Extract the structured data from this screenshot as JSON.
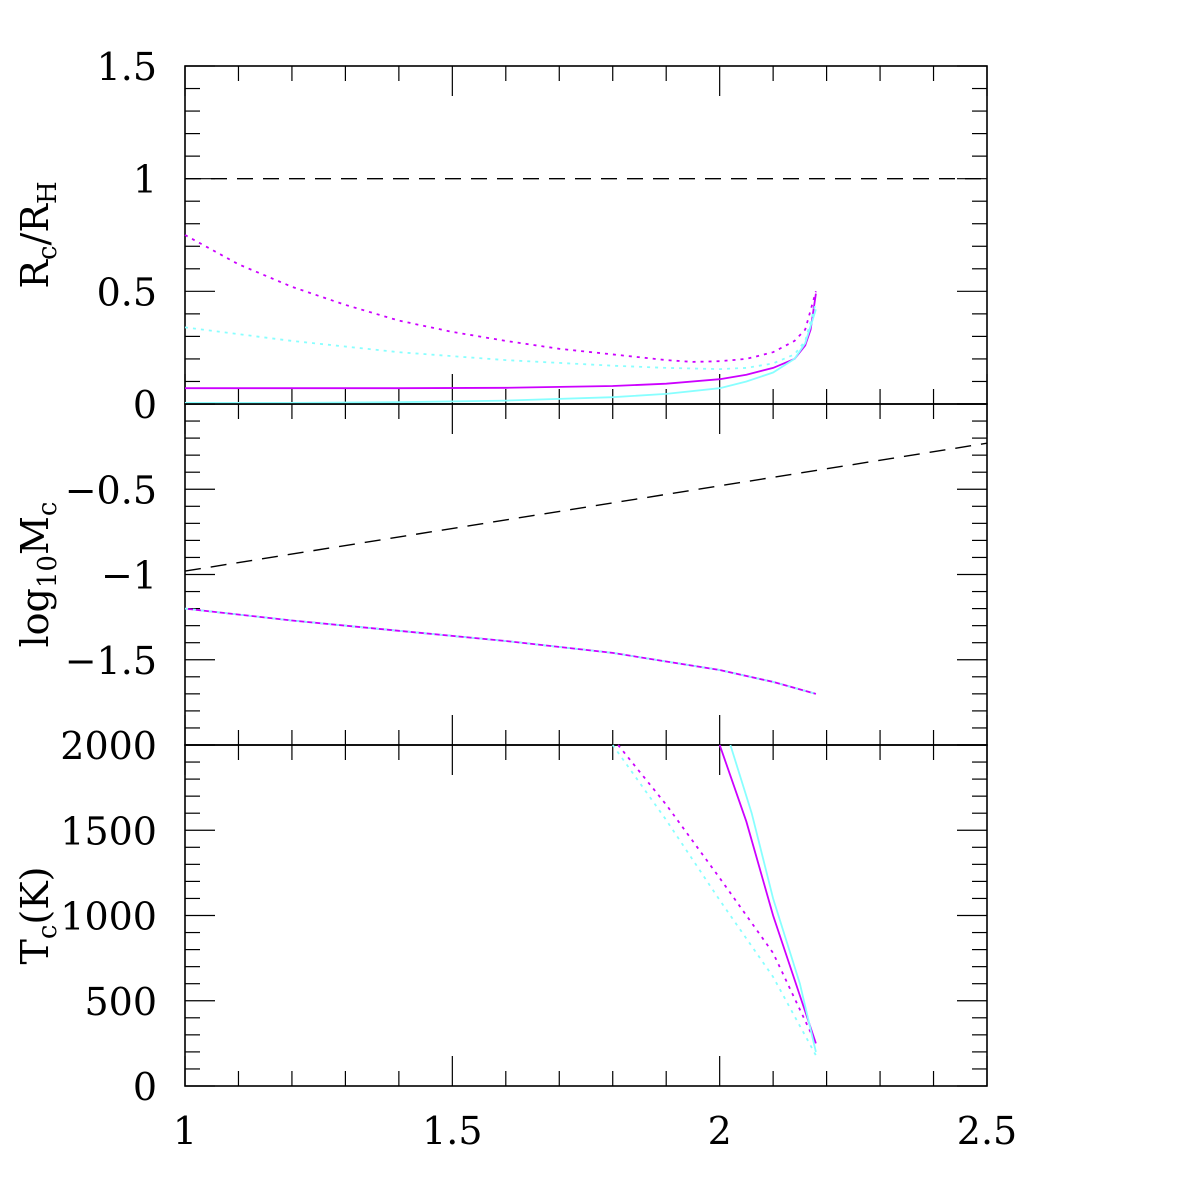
{
  "chart_data": [
    {
      "type": "line",
      "panel": "top",
      "ylabel_parts": [
        "R",
        "c",
        "/R",
        "H"
      ],
      "xlim": [
        1,
        2.5
      ],
      "ylim": [
        0,
        1.5
      ],
      "yticks": [
        0,
        0.5,
        1,
        1.5
      ],
      "ytick_labels": [
        "0",
        "0.5",
        "1",
        "1.5"
      ],
      "grid": false,
      "series": [
        {
          "style": "dashed",
          "color": "#000000",
          "x": [
            1,
            2.5
          ],
          "y": [
            1,
            1
          ]
        },
        {
          "style": "solid",
          "color": "#cc00ff",
          "x": [
            1,
            1.2,
            1.4,
            1.6,
            1.8,
            1.9,
            2.0,
            2.05,
            2.1,
            2.14,
            2.16,
            2.17,
            2.18
          ],
          "y": [
            0.07,
            0.07,
            0.07,
            0.072,
            0.08,
            0.09,
            0.11,
            0.13,
            0.16,
            0.2,
            0.26,
            0.33,
            0.49
          ]
        },
        {
          "style": "dotted",
          "color": "#cc00ff",
          "x": [
            1,
            1.1,
            1.2,
            1.3,
            1.4,
            1.5,
            1.6,
            1.7,
            1.8,
            1.9,
            1.95,
            2.0,
            2.05,
            2.1,
            2.14,
            2.16,
            2.18
          ],
          "y": [
            0.75,
            0.62,
            0.52,
            0.44,
            0.37,
            0.32,
            0.28,
            0.245,
            0.22,
            0.195,
            0.187,
            0.19,
            0.2,
            0.23,
            0.28,
            0.33,
            0.5
          ]
        },
        {
          "style": "solid",
          "color": "#88ffff",
          "x": [
            1,
            1.2,
            1.4,
            1.6,
            1.8,
            1.9,
            2.0,
            2.05,
            2.1,
            2.14,
            2.16,
            2.18
          ],
          "y": [
            0.005,
            0.005,
            0.008,
            0.015,
            0.03,
            0.045,
            0.07,
            0.1,
            0.14,
            0.2,
            0.27,
            0.42
          ]
        },
        {
          "style": "dotted",
          "color": "#88ffff",
          "x": [
            1,
            1.2,
            1.4,
            1.6,
            1.8,
            1.9,
            2.0,
            2.05,
            2.1,
            2.14,
            2.16,
            2.18
          ],
          "y": [
            0.34,
            0.28,
            0.23,
            0.195,
            0.17,
            0.16,
            0.155,
            0.16,
            0.18,
            0.22,
            0.28,
            0.45
          ]
        }
      ]
    },
    {
      "type": "line",
      "panel": "middle",
      "ylabel_parts": [
        "log",
        "10",
        "M",
        "c"
      ],
      "xlim": [
        1,
        2.5
      ],
      "ylim": [
        -2,
        0
      ],
      "yticks": [
        -1.5,
        -1,
        -0.5
      ],
      "ytick_labels": [
        "−1.5",
        "−1",
        "−0.5"
      ],
      "grid": false,
      "series": [
        {
          "style": "dashed",
          "color": "#000000",
          "x": [
            1,
            2.5
          ],
          "y": [
            -0.98,
            -0.23
          ]
        },
        {
          "style": "solid",
          "color": "#cc00ff",
          "x": [
            1,
            1.2,
            1.4,
            1.6,
            1.8,
            1.9,
            2.0,
            2.1,
            2.18
          ],
          "y": [
            -1.2,
            -1.27,
            -1.33,
            -1.39,
            -1.46,
            -1.51,
            -1.56,
            -1.63,
            -1.7
          ]
        },
        {
          "style": "dotted",
          "color": "#88ffff",
          "x": [
            1,
            1.2,
            1.4,
            1.6,
            1.8,
            1.9,
            2.0,
            2.1,
            2.18
          ],
          "y": [
            -1.2,
            -1.27,
            -1.33,
            -1.39,
            -1.46,
            -1.51,
            -1.56,
            -1.63,
            -1.7
          ]
        }
      ]
    },
    {
      "type": "line",
      "panel": "bottom",
      "ylabel_parts": [
        "T",
        "c",
        "(K)"
      ],
      "xlim": [
        1,
        2.5
      ],
      "ylim": [
        0,
        2000
      ],
      "yticks": [
        0,
        500,
        1000,
        1500,
        2000
      ],
      "ytick_labels": [
        "0",
        "500",
        "1000",
        "1500",
        "2000"
      ],
      "xticks": [
        1,
        1.5,
        2,
        2.5
      ],
      "xtick_labels": [
        "1",
        "1.5",
        "2",
        "2.5"
      ],
      "grid": false,
      "series": [
        {
          "style": "solid",
          "color": "#cc00ff",
          "x": [
            2.0,
            2.05,
            2.1,
            2.15,
            2.18
          ],
          "y": [
            2000,
            1550,
            1000,
            530,
            250
          ]
        },
        {
          "style": "dotted",
          "color": "#cc00ff",
          "x": [
            1.81,
            1.9,
            2.0,
            2.1,
            2.18
          ],
          "y": [
            2000,
            1650,
            1220,
            780,
            250
          ]
        },
        {
          "style": "solid",
          "color": "#88ffff",
          "x": [
            2.02,
            2.06,
            2.1,
            2.15,
            2.18
          ],
          "y": [
            2000,
            1600,
            1100,
            600,
            200
          ]
        },
        {
          "style": "dotted",
          "color": "#88ffff",
          "x": [
            1.8,
            1.9,
            2.0,
            2.1,
            2.18
          ],
          "y": [
            2000,
            1560,
            1090,
            640,
            180
          ]
        }
      ]
    }
  ]
}
